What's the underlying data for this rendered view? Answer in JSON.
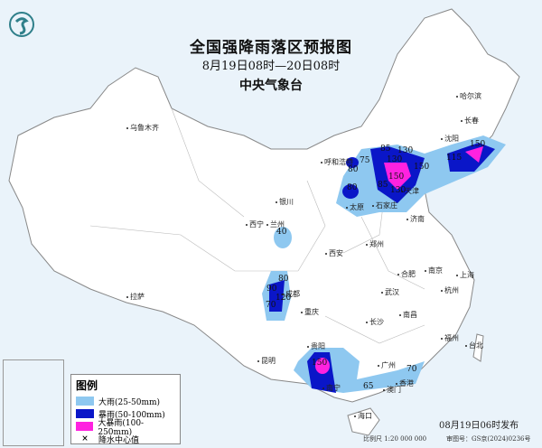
{
  "header": {
    "title": "全国强降雨落区预报图",
    "period": "8月19日08时—20日08时",
    "agency": "中央气象台"
  },
  "logo": {
    "icon": "cma-dragon-logo",
    "color": "#2f7f8a"
  },
  "colors": {
    "heavy_rain": "#8ec8f0",
    "rainstorm": "#0a16c8",
    "heavy_rainstorm": "#ff22e0",
    "sea": "#eaf3fa",
    "land": "#ffffff",
    "border": "#999999"
  },
  "legend": {
    "title": "图例",
    "items": [
      {
        "label": "大雨(25-50mm)",
        "color": "#8ec8f0"
      },
      {
        "label": "暴雨(50-100mm)",
        "color": "#0a16c8"
      },
      {
        "label": "大暴雨(100-250mm)",
        "color": "#ff22e0"
      },
      {
        "label": "降水中心值",
        "symbol": "×"
      }
    ]
  },
  "cities": [
    "哈尔滨",
    "长春",
    "沈阳",
    "乌鲁木齐",
    "呼和浩特",
    "银川",
    "太原",
    "石家庄",
    "天津",
    "济南",
    "西宁",
    "兰州",
    "西安",
    "郑州",
    "合肥",
    "南京",
    "上海",
    "拉萨",
    "成都",
    "重庆",
    "武汉",
    "杭州",
    "长沙",
    "南昌",
    "福州",
    "台北",
    "贵阳",
    "昆明",
    "南宁",
    "广州",
    "澳门",
    "香港",
    "海口"
  ],
  "rain_centers": [
    "85",
    "75",
    "80",
    "130",
    "130",
    "150",
    "150",
    "85",
    "80",
    "130",
    "115",
    "150",
    "40",
    "80",
    "90",
    "120",
    "70",
    "150",
    "65",
    "70"
  ],
  "footer": {
    "issued": "08月19日06时发布",
    "scale": "比例尺 1:20 000 000",
    "approval": "审图号：GS京(2024)0236号"
  }
}
